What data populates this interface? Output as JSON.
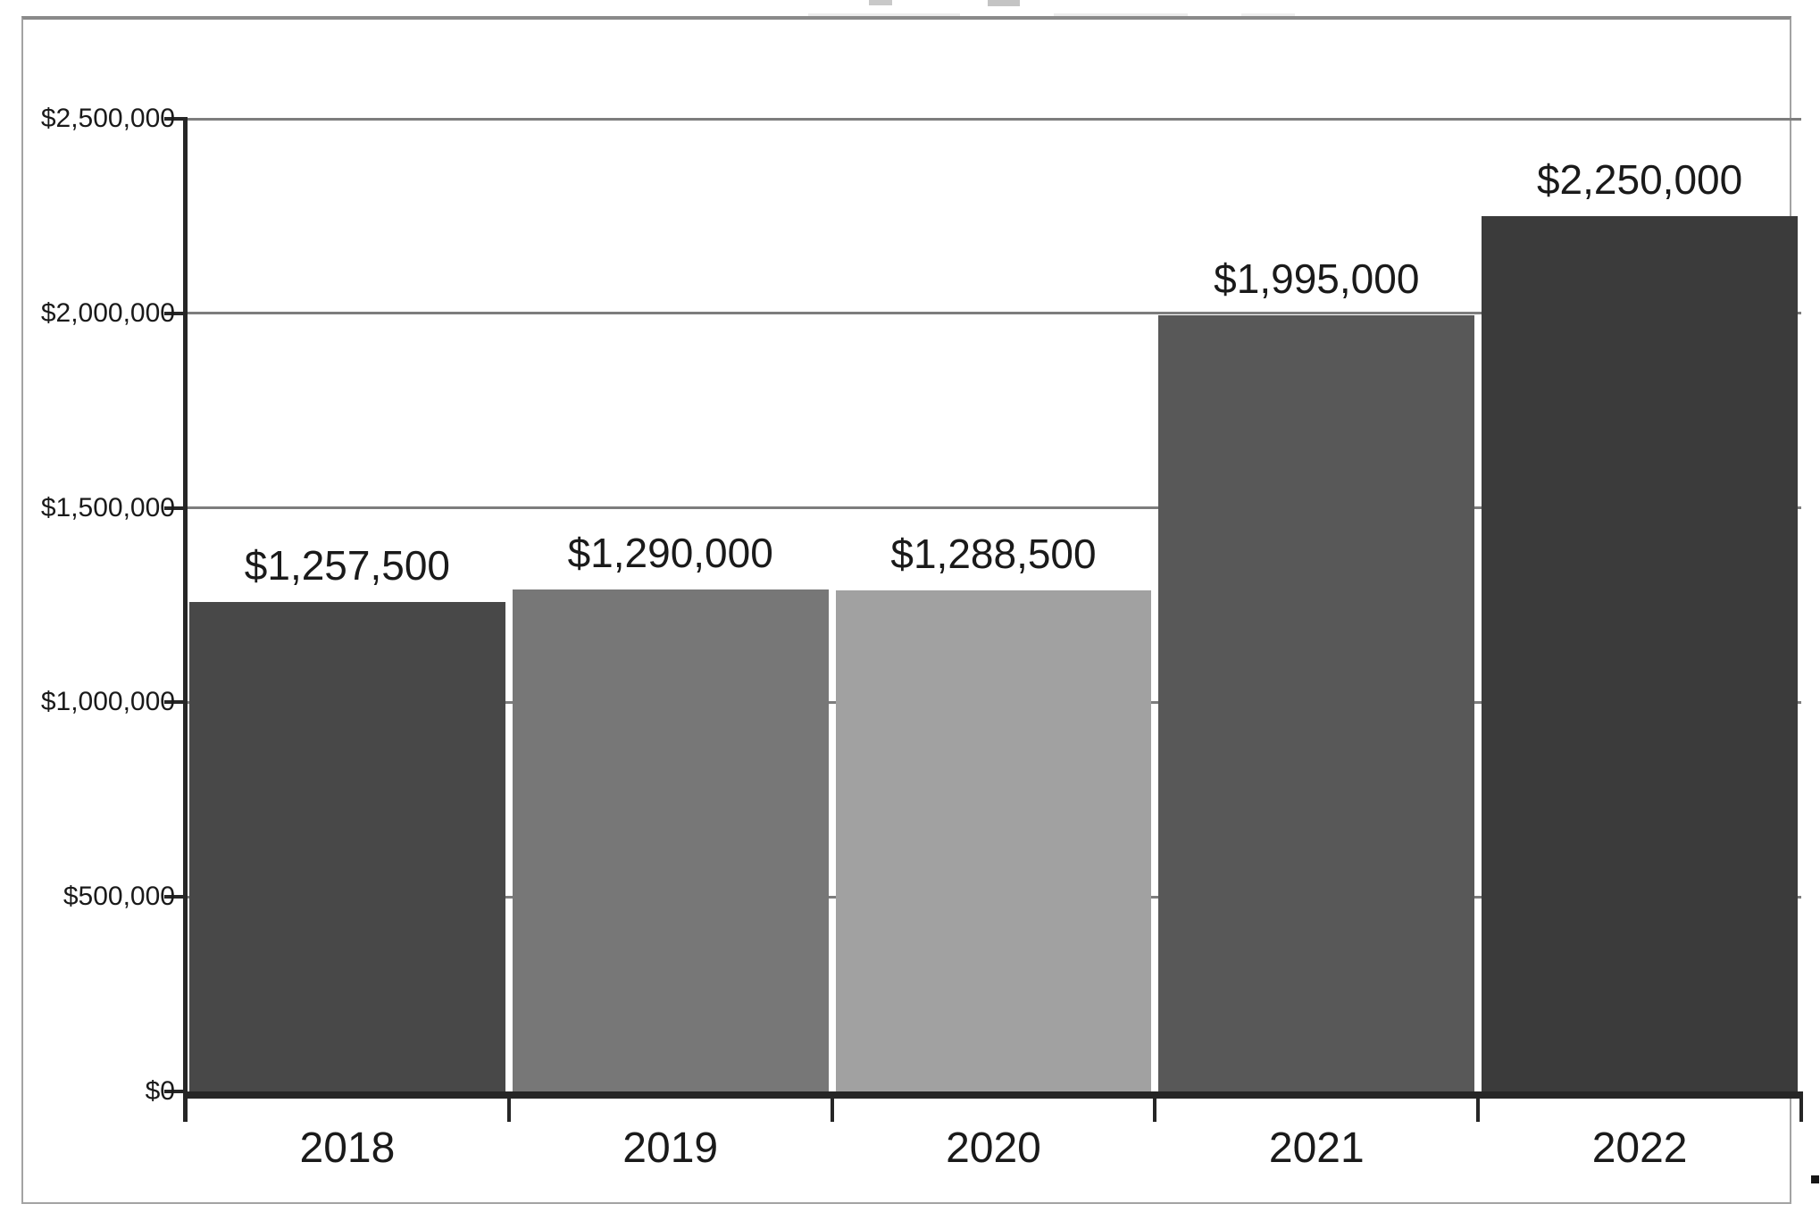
{
  "page": {
    "background": "#ffffff",
    "frame_border_color": "#a3a3a3"
  },
  "chart_data": {
    "type": "bar",
    "title": "",
    "categories": [
      "2018",
      "2019",
      "2020",
      "2021",
      "2022"
    ],
    "values": [
      1257500,
      1290000,
      1288500,
      1995000,
      2250000
    ],
    "value_labels": [
      "$1,257,500",
      "$1,290,000",
      "$1,288,500",
      "$1,995,000",
      "$2,250,000"
    ],
    "bar_colors": [
      "#484848",
      "#777777",
      "#a1a1a1",
      "#585858",
      "#3b3b3b"
    ],
    "xlabel": "",
    "ylabel": "",
    "y_axis": {
      "min": 0,
      "max": 2500000,
      "step": 500000,
      "tick_labels": [
        "$0",
        "$500,000",
        "$1,000,000",
        "$1,500,000",
        "$2,000,000",
        "$2,500,000"
      ]
    },
    "grid": true,
    "legend": "none",
    "gridline_color": "#7d7d7d",
    "axis_color": "#262626",
    "text_color": "#1a1a1a"
  },
  "artifacts": {
    "cropped_title_present": true,
    "caption_period": "."
  }
}
